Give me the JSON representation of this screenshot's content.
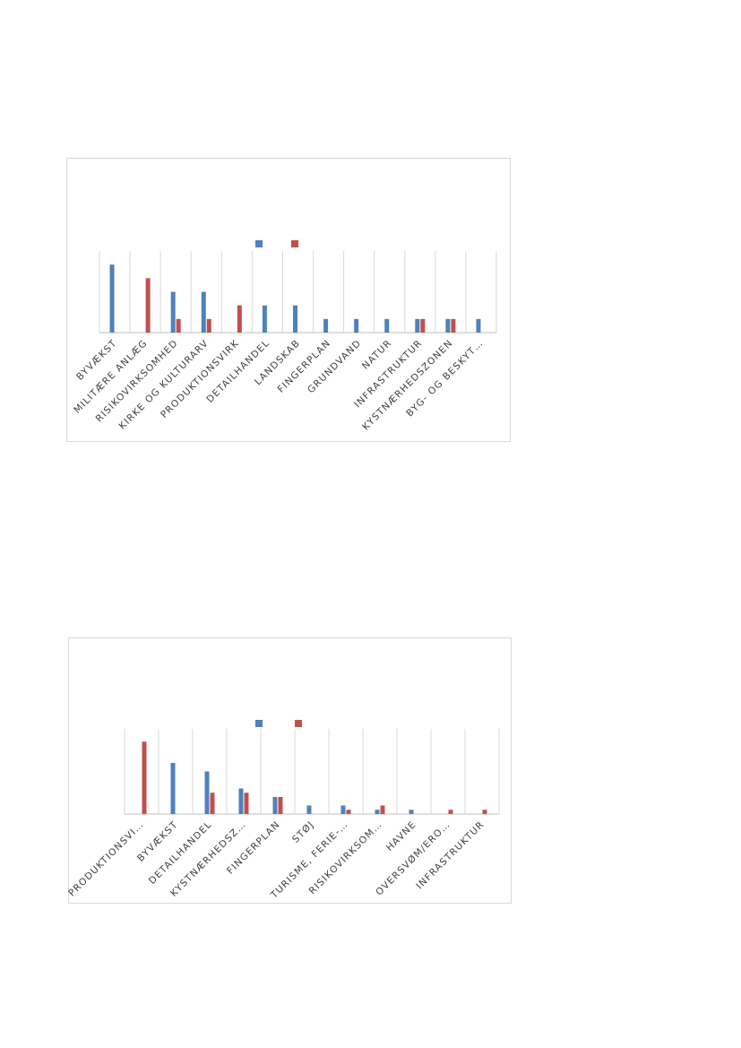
{
  "colors": {
    "series_a": "#4f81bd",
    "series_b": "#c0504d"
  },
  "chart_data": [
    {
      "type": "bar",
      "legend_position": "top",
      "grid": "vertical",
      "categories": [
        "BYVÆKST",
        "MILITÆRE ANLÆG",
        "RISIKOVIRKSOMHED",
        "KIRKE OG KULTURARV",
        "PRODUKTIONSVIRK",
        "DETAILHANDEL",
        "LANDSKAB",
        "FINGERPLAN",
        "GRUNDVAND",
        "NATUR",
        "INFRASTRUKTUR",
        "KYSTNÆRHEDSZONEN",
        "BYG- OG BESKYT…"
      ],
      "series": [
        {
          "values": [
            5,
            0,
            3,
            3,
            0,
            2,
            2,
            1,
            1,
            1,
            1,
            1,
            1
          ]
        },
        {
          "values": [
            0,
            4,
            1,
            1,
            2,
            0,
            0,
            0,
            0,
            0,
            1,
            1,
            0
          ]
        }
      ],
      "ylim": [
        0,
        6
      ]
    },
    {
      "type": "bar",
      "legend_position": "top",
      "grid": "vertical",
      "categories": [
        "PRODUKTIONSVI…",
        "BYVÆKST",
        "DETAILHANDEL",
        "KYSTNÆRHEDSZ…",
        "FINGERPLAN",
        "STØJ",
        "TURISME, FERIE-…",
        "RISIKOVIRKSOM…",
        "HAVNE",
        "OVERSVØM/ERO…",
        "INFRASTRUKTUR"
      ],
      "series": [
        {
          "values": [
            0,
            12,
            10,
            6,
            4,
            2,
            2,
            1,
            1,
            0,
            0
          ]
        },
        {
          "values": [
            17,
            0,
            5,
            5,
            4,
            0,
            1,
            2,
            0,
            1,
            1
          ]
        }
      ],
      "ylim": [
        0,
        20
      ]
    }
  ]
}
